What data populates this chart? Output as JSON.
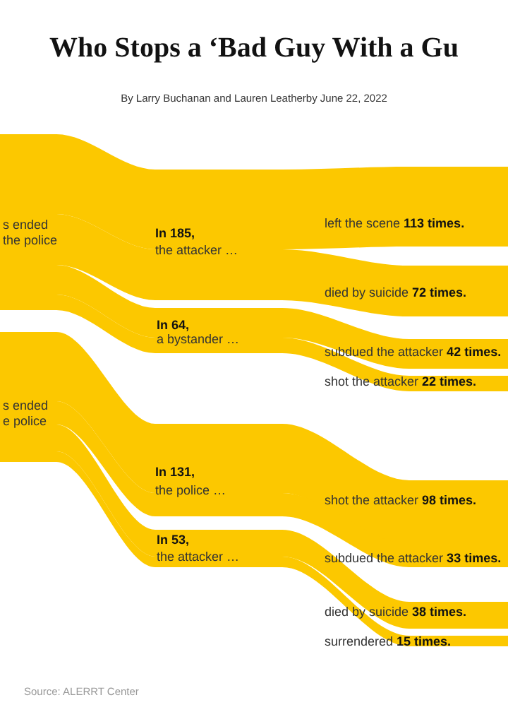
{
  "chart_data": {
    "type": "other",
    "title": "Who Stops a ‘Bad Guy With a Gu",
    "subtitle": "By Larry Buchanan and Lauren Leatherby  June 22, 2022",
    "categories": [
      "left the scene",
      "died by suicide",
      "subdued the attacker",
      "shot the attacker",
      "shot the attacker",
      "subdued the attacker",
      "died by suicide",
      "surrendered"
    ],
    "values": [
      113,
      72,
      42,
      22,
      98,
      33,
      38,
      15
    ],
    "value_labels": [
      "113 times.",
      "72 times.",
      "42 times.",
      "22 times.",
      "98 times.",
      "33 times.",
      "38 times.",
      "15 times."
    ],
    "colors": [
      "#fcc800",
      "#fcc800",
      "#fcc800",
      "#fcc800",
      "#fcc800",
      "#fcc800",
      "#fcc800",
      "#fcc800"
    ],
    "annotations": [
      "s ended",
      "the police",
      "s ended",
      "e police",
      "In 185,",
      "the attacker …",
      "In 64,",
      "a bystander …",
      "In 131,",
      "the police …",
      "In 53,",
      "the attacker …",
      "Source: ALERRT Center"
    ]
  }
}
